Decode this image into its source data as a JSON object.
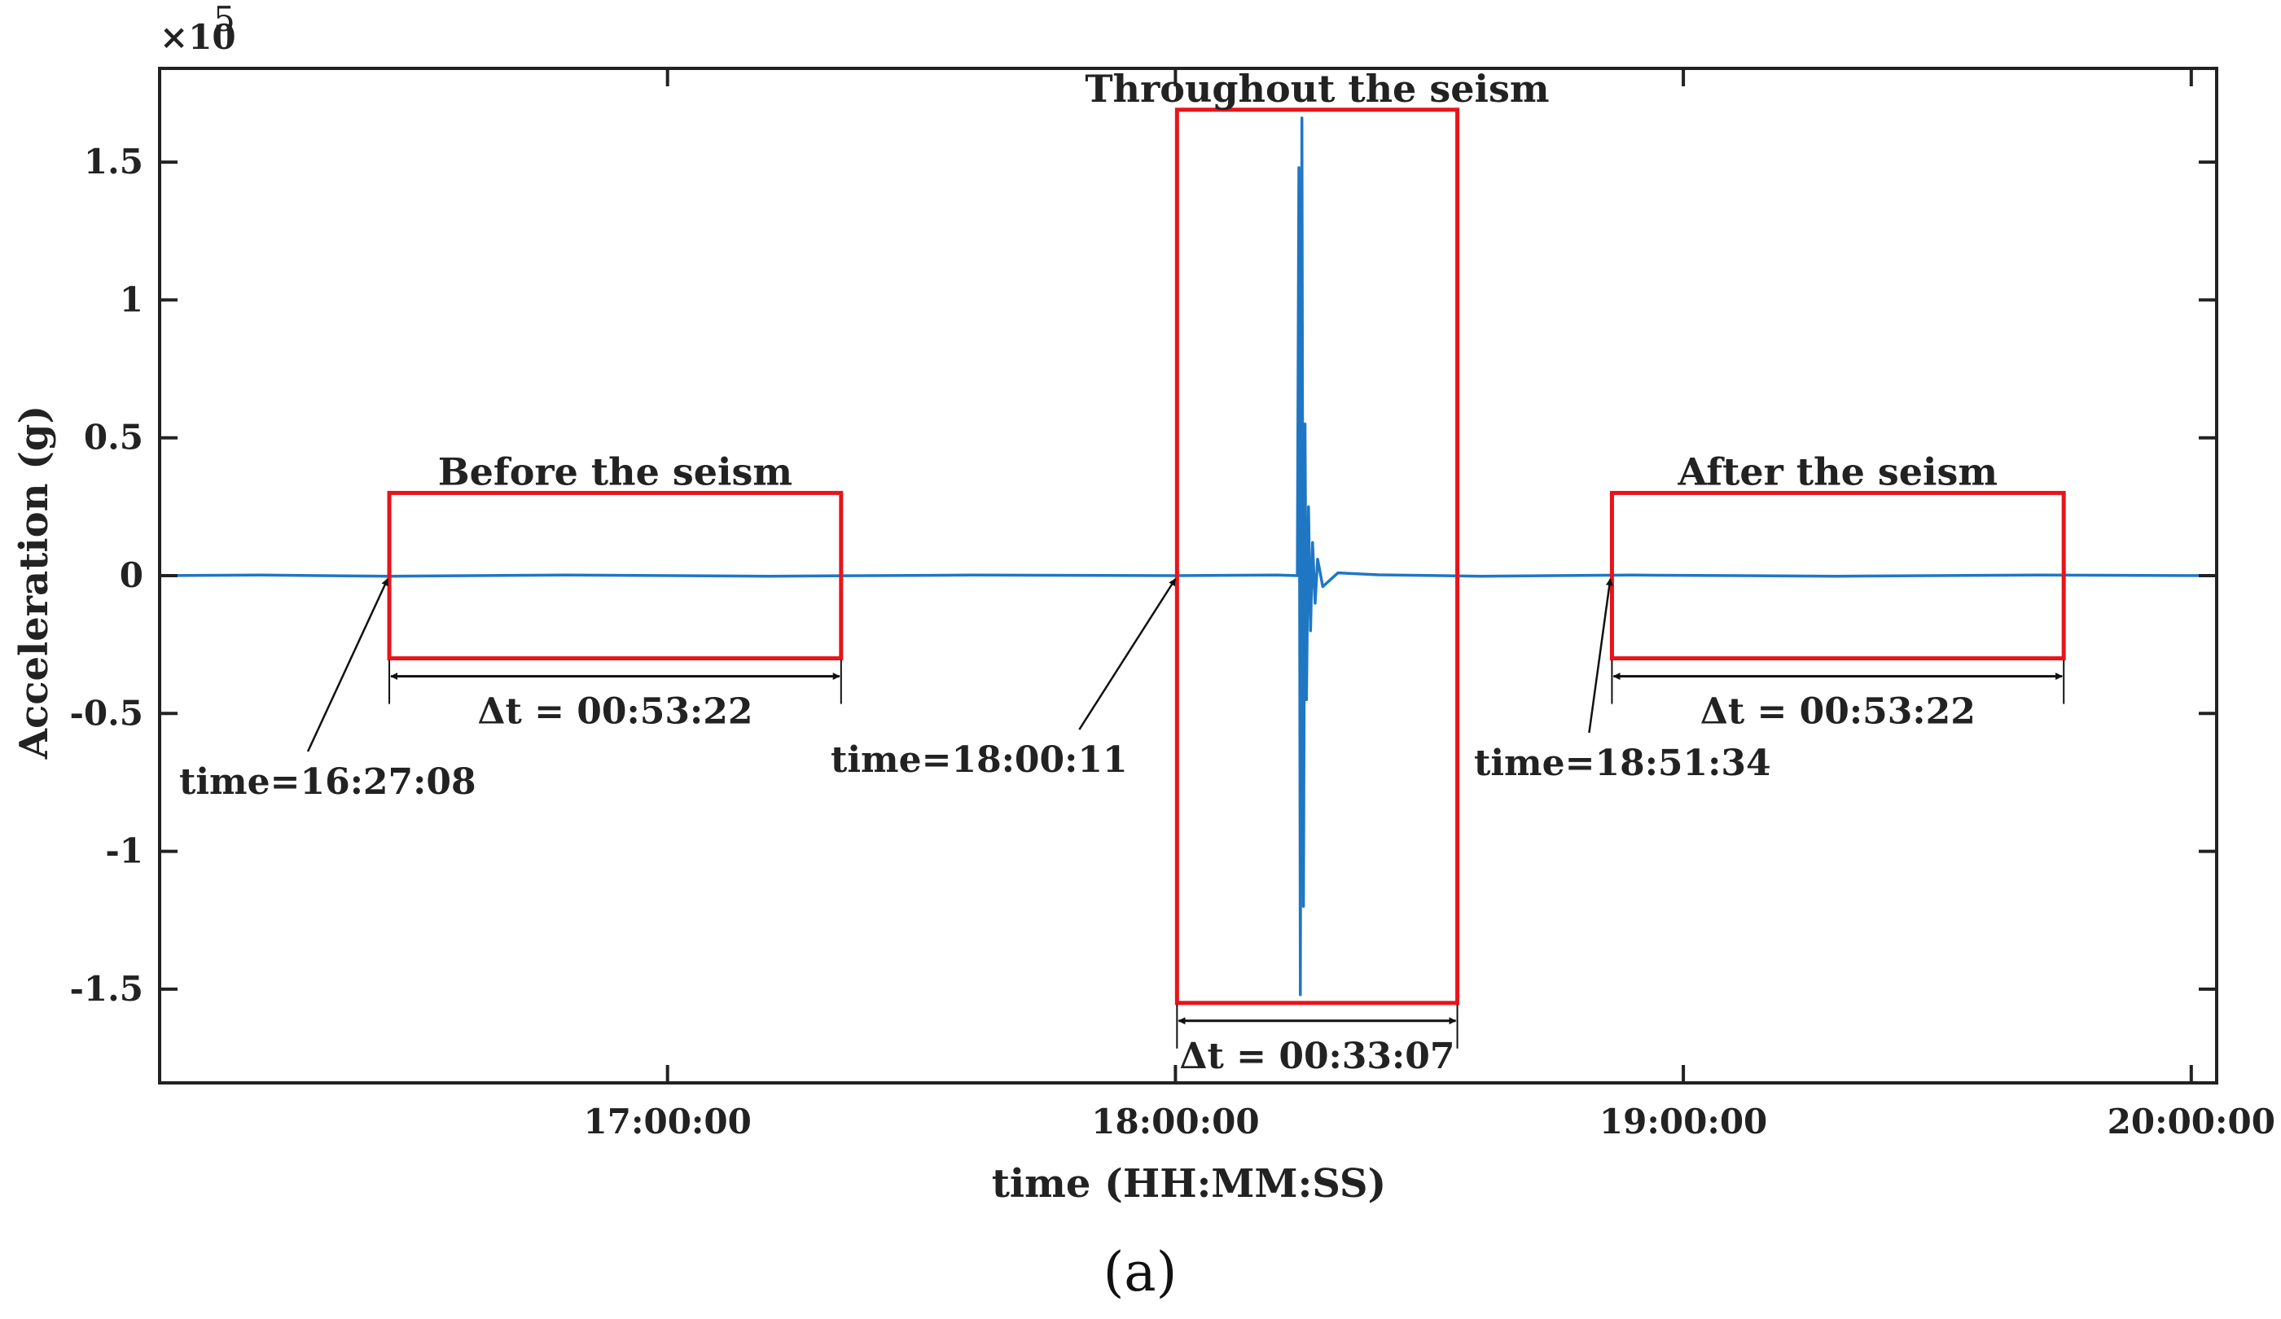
{
  "chart_data": {
    "type": "line",
    "title": "",
    "xlabel": "time (HH:MM:SS)",
    "ylabel": "Acceleration (g)",
    "y_multiplier_label": "×10",
    "y_multiplier_exponent": "5",
    "panel_label": "(a)",
    "xlim_hours": [
      16.0,
      20.05
    ],
    "ylim": [
      -1.84,
      1.84
    ],
    "x_ticks": [
      {
        "value": 17.0,
        "label": "17:00:00"
      },
      {
        "value": 18.0,
        "label": "18:00:00"
      },
      {
        "value": 19.0,
        "label": "19:00:00"
      },
      {
        "value": 20.0,
        "label": "20:00:00"
      }
    ],
    "y_ticks": [
      {
        "value": 1.5,
        "label": "1.5"
      },
      {
        "value": 1.0,
        "label": "1"
      },
      {
        "value": 0.5,
        "label": "0.5"
      },
      {
        "value": 0.0,
        "label": "0"
      },
      {
        "value": -0.5,
        "label": "-0.5"
      },
      {
        "value": -1.0,
        "label": "-1"
      },
      {
        "value": -1.5,
        "label": "-1.5"
      }
    ],
    "series": [
      {
        "color": "#1f77c4",
        "x": [
          16.0,
          16.2,
          16.45,
          16.8,
          17.2,
          17.6,
          18.0,
          18.2,
          18.24,
          18.243,
          18.246,
          18.249,
          18.252,
          18.255,
          18.258,
          18.262,
          18.266,
          18.27,
          18.275,
          18.28,
          18.29,
          18.32,
          18.4,
          18.6,
          18.9,
          19.3,
          19.7,
          20.05
        ],
        "y": [
          0.0,
          0.002,
          -0.002,
          0.002,
          -0.002,
          0.002,
          0.0,
          0.002,
          0.0,
          1.48,
          -1.52,
          1.66,
          -1.2,
          0.55,
          -0.45,
          0.25,
          -0.2,
          0.12,
          -0.1,
          0.06,
          -0.04,
          0.01,
          0.003,
          -0.002,
          0.002,
          -0.002,
          0.002,
          0.0
        ]
      }
    ],
    "regions": [
      {
        "title": "Before the seism",
        "x_start": 16.4522,
        "x_end": 17.3417,
        "y_low": -0.3,
        "y_high": 0.3,
        "start_label": "time=16:27:08",
        "duration_label": "Δt = 00:53:22"
      },
      {
        "title": "Throughout the seism",
        "x_start": 18.0031,
        "x_end": 18.555,
        "y_low": -1.55,
        "y_high": 1.69,
        "start_label": "time=18:00:11",
        "duration_label": "Δt = 00:33:07"
      },
      {
        "title": "After the seism",
        "x_start": 18.8594,
        "x_end": 19.7489,
        "y_low": -0.3,
        "y_high": 0.3,
        "start_label": "time=18:51:34",
        "duration_label": "Δt = 00:53:22"
      }
    ],
    "colors": {
      "signal": "#1f77c4",
      "region_box": "#e8141b",
      "axes": "#222222"
    },
    "grid": false,
    "legend": "none"
  }
}
